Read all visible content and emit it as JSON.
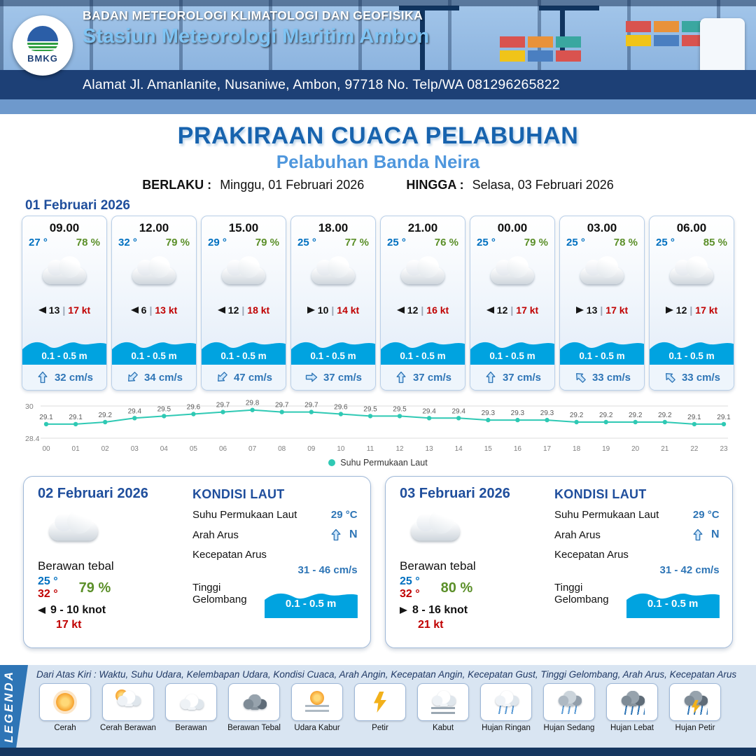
{
  "header": {
    "logo": "BMKG",
    "agency": "BADAN METEOROLOGI KLIMATOLOGI DAN GEOFISIKA",
    "station": "Stasiun Meteorologi Maritim Ambon",
    "address": "Alamat Jl. Amanlanite, Nusaniwe, Ambon, 97718   No. Telp/WA  081296265822"
  },
  "title": {
    "main": "PRAKIRAAN CUACA PELABUHAN",
    "sub": "Pelabuhan Banda Neira",
    "valid_from_label": "BERLAKU :",
    "valid_from": "Minggu, 01 Februari 2026",
    "valid_to_label": "HINGGA :",
    "valid_to": "Selasa, 03 Februari 2026"
  },
  "labels": {
    "wind_sep": "|"
  },
  "forecast": {
    "date": "01 Februari 2026",
    "cards": [
      {
        "time": "09.00",
        "temp": "27 °",
        "rh": "78 %",
        "wind_dir": "W",
        "wind": "13",
        "gust": "17 kt",
        "wave": "0.1 - 0.5 m",
        "cur_dir": "N",
        "cur": "32 cm/s"
      },
      {
        "time": "12.00",
        "temp": "32 °",
        "rh": "79 %",
        "wind_dir": "W",
        "wind": "6",
        "gust": "13 kt",
        "wave": "0.1 - 0.5 m",
        "cur_dir": "SW",
        "cur": "34 cm/s"
      },
      {
        "time": "15.00",
        "temp": "29 °",
        "rh": "79 %",
        "wind_dir": "W",
        "wind": "12",
        "gust": "18 kt",
        "wave": "0.1 - 0.5 m",
        "cur_dir": "SW",
        "cur": "47 cm/s"
      },
      {
        "time": "18.00",
        "temp": "25 °",
        "rh": "77 %",
        "wind_dir": "E",
        "wind": "10",
        "gust": "14 kt",
        "wave": "0.1 - 0.5 m",
        "cur_dir": "E",
        "cur": "37 cm/s"
      },
      {
        "time": "21.00",
        "temp": "25 °",
        "rh": "76 %",
        "wind_dir": "W",
        "wind": "12",
        "gust": "16 kt",
        "wave": "0.1 - 0.5 m",
        "cur_dir": "N",
        "cur": "37 cm/s"
      },
      {
        "time": "00.00",
        "temp": "25 °",
        "rh": "79 %",
        "wind_dir": "W",
        "wind": "12",
        "gust": "17 kt",
        "wave": "0.1 - 0.5 m",
        "cur_dir": "N",
        "cur": "37 cm/s"
      },
      {
        "time": "03.00",
        "temp": "25 °",
        "rh": "78 %",
        "wind_dir": "E",
        "wind": "13",
        "gust": "17 kt",
        "wave": "0.1 - 0.5 m",
        "cur_dir": "NW",
        "cur": "33 cm/s"
      },
      {
        "time": "06.00",
        "temp": "25 °",
        "rh": "85 %",
        "wind_dir": "E",
        "wind": "12",
        "gust": "17 kt",
        "wave": "0.1 - 0.5 m",
        "cur_dir": "NW",
        "cur": "33 cm/s"
      }
    ]
  },
  "chart_data": {
    "type": "line",
    "x": [
      "00",
      "01",
      "02",
      "03",
      "04",
      "05",
      "06",
      "07",
      "08",
      "09",
      "10",
      "11",
      "12",
      "13",
      "14",
      "15",
      "16",
      "17",
      "18",
      "19",
      "20",
      "21",
      "22",
      "23"
    ],
    "series": [
      {
        "name": "Suhu Permukaan Laut",
        "values": [
          29.1,
          29.1,
          29.2,
          29.4,
          29.5,
          29.6,
          29.7,
          29.8,
          29.7,
          29.7,
          29.6,
          29.5,
          29.5,
          29.4,
          29.4,
          29.3,
          29.3,
          29.3,
          29.2,
          29.2,
          29.2,
          29.2,
          29.1,
          29.1
        ]
      }
    ],
    "ylim": [
      28.4,
      30
    ],
    "ytick_labels": [
      "30",
      "28.4"
    ],
    "legend": "Suhu Permukaan Laut",
    "line_color": "#2fc9b4",
    "grid": true,
    "legend_position": "bottom"
  },
  "days": [
    {
      "date": "02 Februari 2026",
      "condition": "Berawan tebal",
      "temp_min": "25 °",
      "temp_max": "32 °",
      "rh": "79 %",
      "wind_dir": "W",
      "wind": "9 - 10 knot",
      "gust": "17 kt",
      "sea_title": "KONDISI LAUT",
      "sst_label": "Suhu Permukaan Laut",
      "sst": "29 °C",
      "current_dir_label": "Arah Arus",
      "current_dir": "N",
      "current_dir_text": "N",
      "current_speed_label": "Kecepatan Arus",
      "current_speed": "31 - 46 cm/s",
      "wave_label": "Tinggi Gelombang",
      "wave": "0.1 - 0.5 m"
    },
    {
      "date": "03 Februari 2026",
      "condition": "Berawan tebal",
      "temp_min": "25 °",
      "temp_max": "32 °",
      "rh": "80 %",
      "wind_dir": "E",
      "wind": "8 - 16 knot",
      "gust": "21 kt",
      "sea_title": "KONDISI LAUT",
      "sst_label": "Suhu Permukaan Laut",
      "sst": "29 °C",
      "current_dir_label": "Arah Arus",
      "current_dir": "N",
      "current_dir_text": "N",
      "current_speed_label": "Kecepatan Arus",
      "current_speed": "31 - 42 cm/s",
      "wave_label": "Tinggi Gelombang",
      "wave": "0.1 - 0.5 m"
    }
  ],
  "legend": {
    "title": "LEGENDA",
    "description": "Dari Atas Kiri : Waktu, Suhu Udara, Kelembapan Udara, Kondisi Cuaca, Arah Angin, Kecepatan Angin, Kecepatan Gust, Tinggi Gelombang, Arah Arus, Kecepatan Arus",
    "items": [
      {
        "label": "Cerah",
        "icon": "sun"
      },
      {
        "label": "Cerah Berawan",
        "icon": "sun-cloud"
      },
      {
        "label": "Berawan",
        "icon": "cloud"
      },
      {
        "label": "Berawan Tebal",
        "icon": "cloud-dark"
      },
      {
        "label": "Udara Kabur",
        "icon": "haze"
      },
      {
        "label": "Petir",
        "icon": "bolt"
      },
      {
        "label": "Kabut",
        "icon": "fog"
      },
      {
        "label": "Hujan Ringan",
        "icon": "rain-light"
      },
      {
        "label": "Hujan Sedang",
        "icon": "rain-mid"
      },
      {
        "label": "Hujan Lebat",
        "icon": "rain-heavy"
      },
      {
        "label": "Hujan Petir",
        "icon": "rain-bolt"
      }
    ]
  },
  "colors": {
    "accent_blue": "#0070c0",
    "value_blue": "#2e75b6",
    "humidity_green": "#5b8f29",
    "gust_red": "#c00000",
    "wave_blue": "#00a3e0",
    "title_blue": "#1763ae",
    "header_navy": "#1d4076",
    "chart_teal": "#2fc9b4"
  }
}
